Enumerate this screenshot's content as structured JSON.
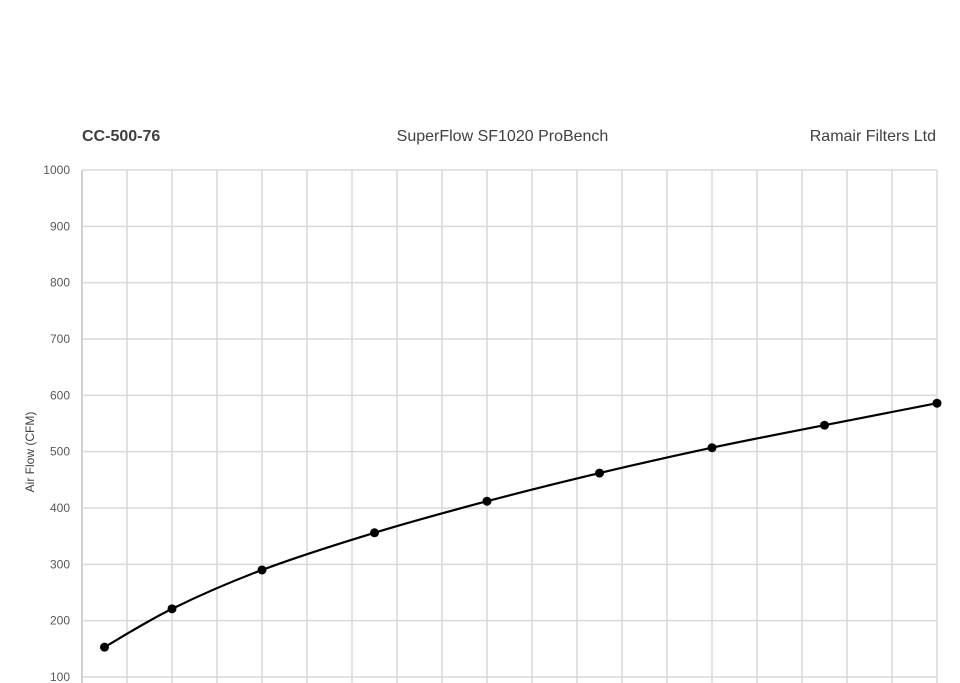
{
  "header": {
    "left": "CC-500-76",
    "center": "SuperFlow SF1020 ProBench",
    "right": "Ramair Filters Ltd"
  },
  "chart_data": {
    "type": "line",
    "title": "SuperFlow SF1020 ProBench",
    "xlabel": "",
    "ylabel": "Air Flow (CFM)",
    "ylim": [
      100,
      1000
    ],
    "yticks": [
      100,
      200,
      300,
      400,
      500,
      600,
      700,
      800,
      900,
      1000
    ],
    "xlim": [
      0,
      19
    ],
    "x_gridlines": 19,
    "grid": true,
    "smooth": true,
    "markers": "circle",
    "line_color": "#000000",
    "grid_color": "#d9d9d9",
    "series": [
      {
        "x": [
          0.5,
          2,
          4,
          6.5,
          9,
          11.5,
          14,
          16.5,
          19
        ],
        "values": [
          153,
          221,
          290,
          356,
          412,
          462,
          507,
          547,
          586
        ]
      }
    ]
  }
}
